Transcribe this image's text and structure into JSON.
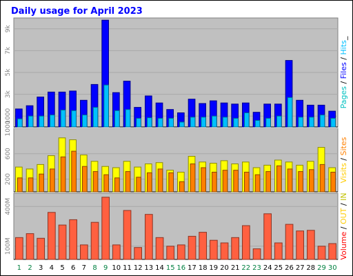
{
  "title": "Daily usage for April 2023",
  "chart_data": {
    "type": "bar",
    "title": "Daily usage for April 2023",
    "categories": [
      "1",
      "2",
      "3",
      "4",
      "5",
      "6",
      "7",
      "8",
      "9",
      "10",
      "11",
      "12",
      "13",
      "14",
      "15",
      "16",
      "17",
      "18",
      "19",
      "20",
      "21",
      "22",
      "23",
      "24",
      "25",
      "26",
      "27",
      "28",
      "29",
      "30"
    ],
    "weekend_days": [
      "1",
      "2",
      "8",
      "9",
      "15",
      "16",
      "22",
      "23",
      "29",
      "30"
    ],
    "panels": [
      {
        "id": "hits",
        "ylim": [
          0,
          10000
        ],
        "tick_labels": [
          "1000",
          "3k",
          "5k",
          "7k",
          "9k"
        ],
        "tick_values": [
          1000,
          3000,
          5000,
          7000,
          9000
        ],
        "series": [
          {
            "name": "Hits",
            "color": "#0000ff",
            "values": [
              1650,
              1950,
              2750,
              3200,
              3200,
              3300,
              2450,
              3900,
              9800,
              3150,
              4200,
              1800,
              2850,
              2200,
              1600,
              1300,
              2550,
              2150,
              2400,
              2200,
              2100,
              2200,
              1350,
              2100,
              2100,
              6100,
              2450,
              2000,
              2000,
              1450
            ]
          },
          {
            "name": "Files",
            "color": "#00c0ff",
            "values": [
              750,
              1000,
              1000,
              1100,
              1550,
              1500,
              1100,
              1800,
              3850,
              1500,
              1600,
              800,
              850,
              800,
              800,
              450,
              900,
              900,
              1000,
              900,
              800,
              1300,
              600,
              800,
              1000,
              2700,
              900,
              900,
              1100,
              800
            ]
          }
        ],
        "axis_label": [
          {
            "text": "Pages",
            "color": "#00c0c0"
          },
          {
            "text": " / ",
            "color": "#000000"
          },
          {
            "text": "Files",
            "color": "#0000ff"
          },
          {
            "text": " / ",
            "color": "#000000"
          },
          {
            "text": "Hits",
            "color": "#00c0ff"
          },
          {
            "text": "_",
            "color": "#000000"
          }
        ]
      },
      {
        "id": "visits",
        "ylim": [
          0,
          1000
        ],
        "tick_labels": [
          "200",
          "600",
          "1000"
        ],
        "tick_values": [
          200,
          600,
          1000
        ],
        "series": [
          {
            "name": "Visits",
            "color": "#ffff00",
            "values": [
              390,
              360,
              430,
              570,
              850,
              820,
              580,
              480,
              400,
              380,
              480,
              390,
              440,
              460,
              340,
              310,
              560,
              470,
              450,
              490,
              440,
              470,
              380,
              420,
              500,
              470,
              420,
              480,
              700,
              380
            ]
          },
          {
            "name": "Sites",
            "color": "#ff8000",
            "values": [
              220,
              220,
              280,
              360,
              550,
              640,
              400,
              320,
              270,
              220,
              320,
              230,
              300,
              360,
              300,
              160,
              440,
              380,
              310,
              340,
              340,
              310,
              270,
              320,
              410,
              360,
              320,
              350,
              430,
              310
            ]
          }
        ],
        "axis_label": [
          {
            "text": "Visits",
            "color": "#ffcc00"
          },
          {
            "text": " / ",
            "color": "#000000"
          },
          {
            "text": "Sites",
            "color": "#ff8000"
          }
        ]
      },
      {
        "id": "volume",
        "ylim": [
          0,
          500
        ],
        "tick_labels": [
          "100M",
          "400M"
        ],
        "tick_values": [
          100,
          400
        ],
        "series": [
          {
            "name": "Volume",
            "color": "#ff6040",
            "values": [
              165,
              195,
              160,
              355,
              260,
              300,
              110,
              280,
              470,
              110,
              370,
              90,
              340,
              165,
              100,
              110,
              175,
              205,
              145,
              125,
              165,
              255,
              80,
              345,
              125,
              265,
              215,
              220,
              100,
              120
            ]
          }
        ],
        "axis_label": [
          {
            "text": "Volume",
            "color": "#ff0000"
          },
          {
            "text": " / ",
            "color": "#000000"
          },
          {
            "text": "OUT",
            "color": "#ffcc00"
          },
          {
            "text": " / ",
            "color": "#000000"
          },
          {
            "text": "IN",
            "color": "#c0c000"
          }
        ]
      }
    ]
  },
  "colors": {
    "title": "#0000ff",
    "panel_bg": "#c0c0c0",
    "grid": "#a8a8a8",
    "weekday_label": "#000000",
    "weekend_label": "#008040"
  }
}
